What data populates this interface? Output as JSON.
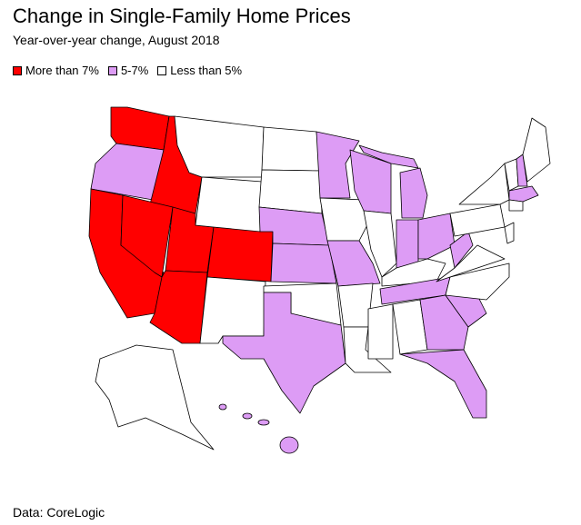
{
  "title": "Change in Single-Family Home Prices",
  "subtitle": "Year-over-year change, August 2018",
  "legend": [
    {
      "label": "More than 7%",
      "color": "#ff0000"
    },
    {
      "label": "5-7%",
      "color": "#dd9cf5"
    },
    {
      "label": "Less than 5%",
      "color": "#ffffff"
    }
  ],
  "source": "Data: CoreLogic"
}
